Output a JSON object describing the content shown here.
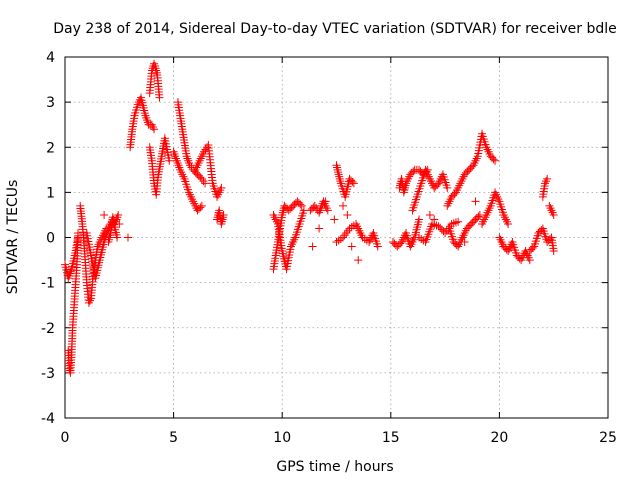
{
  "chart_data": {
    "type": "scatter",
    "title": "Day 238 of 2014, Sidereal Day-to-day VTEC variation (SDTVAR) for receiver bdle",
    "xlabel": "GPS time / hours",
    "ylabel": "SDTVAR / TECUs",
    "xlim": [
      0,
      25
    ],
    "ylim": [
      -4,
      4
    ],
    "xticks": [
      0,
      5,
      10,
      15,
      20,
      25
    ],
    "yticks": [
      -4,
      -3,
      -2,
      -1,
      0,
      1,
      2,
      3,
      4
    ],
    "grid": true,
    "marker": "+",
    "color": "#ff0000",
    "series": [
      {
        "name": "SDTVAR",
        "segments": [
          {
            "x": [
              0.0,
              0.15,
              0.3,
              0.45,
              0.6
            ],
            "y": [
              -0.6,
              -0.9,
              -0.7,
              -0.4,
              0.0
            ]
          },
          {
            "x": [
              0.15,
              0.2,
              0.25,
              0.3,
              0.35,
              0.45,
              0.55,
              0.6
            ],
            "y": [
              -2.5,
              -2.9,
              -3.0,
              -2.6,
              -2.0,
              -1.3,
              -0.6,
              0.1
            ]
          },
          {
            "x": [
              0.7,
              0.8,
              0.9,
              1.0,
              1.1,
              1.2,
              1.3,
              1.5,
              1.7,
              1.9
            ],
            "y": [
              0.7,
              0.3,
              -0.3,
              -1.0,
              -1.45,
              -1.35,
              -0.8,
              -0.2,
              0.0,
              0.2
            ]
          },
          {
            "x": [
              1.0,
              1.2,
              1.4,
              1.6,
              1.8,
              2.0,
              2.2,
              2.4
            ],
            "y": [
              0.1,
              -0.4,
              -0.9,
              -0.5,
              -0.1,
              0.2,
              0.4,
              0.0
            ]
          },
          {
            "x": [
              2.0,
              2.1,
              2.2,
              2.3,
              2.45
            ],
            "y": [
              -0.1,
              0.1,
              0.45,
              0.3,
              0.5
            ]
          },
          {
            "x": [
              3.0,
              3.1,
              3.2,
              3.35,
              3.5,
              3.7,
              3.85,
              4.0,
              4.1
            ],
            "y": [
              2.0,
              2.4,
              2.7,
              2.95,
              3.1,
              2.7,
              2.5,
              2.5,
              2.4
            ]
          },
          {
            "x": [
              3.9,
              4.0,
              4.1,
              4.15,
              4.25,
              4.35
            ],
            "y": [
              3.2,
              3.7,
              3.85,
              3.8,
              3.6,
              3.1
            ]
          },
          {
            "x": [
              3.9,
              4.0,
              4.1,
              4.2,
              4.3,
              4.45,
              4.6,
              4.8
            ],
            "y": [
              2.0,
              1.7,
              1.2,
              0.95,
              1.4,
              1.8,
              2.2,
              1.7
            ]
          },
          {
            "x": [
              5.2,
              5.3,
              5.4,
              5.5,
              5.6,
              5.75,
              5.9,
              6.1,
              6.3,
              6.45
            ],
            "y": [
              3.0,
              2.7,
              2.4,
              2.1,
              1.8,
              1.6,
              1.5,
              1.4,
              1.3,
              1.2
            ]
          },
          {
            "x": [
              5.0,
              5.15,
              5.3,
              5.5,
              5.7,
              5.9,
              6.1,
              6.3
            ],
            "y": [
              1.9,
              1.7,
              1.5,
              1.3,
              1.0,
              0.8,
              0.6,
              0.7
            ]
          },
          {
            "x": [
              6.0,
              6.2,
              6.4,
              6.6,
              6.8,
              7.0,
              7.2
            ],
            "y": [
              1.5,
              1.7,
              1.9,
              2.05,
              1.2,
              0.9,
              1.1
            ]
          },
          {
            "x": [
              7.0,
              7.1,
              7.2,
              7.3
            ],
            "y": [
              0.4,
              0.6,
              0.3,
              0.5
            ]
          },
          {
            "x": [
              9.6,
              9.7,
              9.8,
              9.9,
              10.0,
              10.1,
              10.3,
              10.5,
              10.7,
              10.9
            ],
            "y": [
              -0.7,
              -0.4,
              -0.1,
              0.2,
              0.5,
              0.7,
              0.6,
              0.7,
              0.8,
              0.7
            ]
          },
          {
            "x": [
              9.6,
              9.8,
              10.0,
              10.2,
              10.4,
              10.6,
              10.8,
              11.0
            ],
            "y": [
              0.5,
              0.3,
              -0.3,
              -0.7,
              -0.2,
              0.0,
              0.3,
              0.6
            ]
          },
          {
            "x": [
              11.3,
              11.5,
              11.7,
              11.9,
              12.1
            ],
            "y": [
              0.6,
              0.7,
              0.55,
              0.8,
              0.6
            ]
          },
          {
            "x": [
              12.5,
              12.6,
              12.7,
              12.9,
              13.1,
              13.3
            ],
            "y": [
              1.6,
              1.4,
              1.2,
              0.9,
              1.3,
              1.2
            ]
          },
          {
            "x": [
              12.5,
              12.8,
              13.1,
              13.4,
              13.7,
              14.0,
              14.2,
              14.4
            ],
            "y": [
              -0.1,
              0.0,
              0.2,
              0.3,
              0.0,
              -0.1,
              0.1,
              -0.2
            ]
          },
          {
            "x": [
              15.1,
              15.3,
              15.5,
              15.7,
              15.9,
              16.1,
              16.3
            ],
            "y": [
              -0.1,
              -0.2,
              -0.1,
              0.1,
              -0.2,
              0.0,
              0.4
            ]
          },
          {
            "x": [
              15.4,
              15.5,
              15.6,
              15.7,
              15.9,
              16.1,
              16.3,
              16.5,
              16.7
            ],
            "y": [
              1.1,
              1.3,
              1.0,
              1.2,
              1.4,
              1.5,
              1.5,
              1.4,
              1.5
            ]
          },
          {
            "x": [
              16.0,
              16.2,
              16.4,
              16.6,
              16.8,
              17.0,
              17.2,
              17.4,
              17.6
            ],
            "y": [
              0.6,
              0.9,
              1.2,
              1.5,
              1.3,
              1.1,
              1.2,
              1.4,
              1.1
            ]
          },
          {
            "x": [
              16.3,
              16.6,
              16.9,
              17.2,
              17.5,
              17.8,
              18.1
            ],
            "y": [
              0.0,
              -0.1,
              0.3,
              0.25,
              0.1,
              0.3,
              0.35
            ]
          },
          {
            "x": [
              17.6,
              17.8,
              18.0,
              18.2,
              18.4,
              18.6,
              18.8,
              19.0,
              19.2,
              19.4,
              19.6,
              19.8
            ],
            "y": [
              0.7,
              0.9,
              1.0,
              1.2,
              1.4,
              1.5,
              1.6,
              1.8,
              2.3,
              2.0,
              1.8,
              1.7
            ]
          },
          {
            "x": [
              17.7,
              17.9,
              18.1,
              18.3,
              18.5,
              18.7,
              18.9,
              19.1
            ],
            "y": [
              0.2,
              -0.1,
              -0.2,
              0.0,
              0.2,
              0.3,
              0.4,
              0.5
            ]
          },
          {
            "x": [
              19.2,
              19.4,
              19.6,
              19.8,
              20.0,
              20.2,
              20.4
            ],
            "y": [
              0.3,
              0.5,
              0.7,
              1.0,
              0.8,
              0.5,
              0.3
            ]
          },
          {
            "x": [
              20.0,
              20.2,
              20.4,
              20.6,
              20.8,
              21.0,
              21.2,
              21.4
            ],
            "y": [
              0.0,
              -0.2,
              -0.3,
              -0.1,
              -0.4,
              -0.5,
              -0.3,
              -0.5
            ]
          },
          {
            "x": [
              21.4,
              21.6,
              21.8,
              22.0,
              22.2,
              22.4,
              22.5
            ],
            "y": [
              -0.3,
              -0.2,
              0.1,
              0.2,
              -0.1,
              0.0,
              -0.3
            ]
          },
          {
            "x": [
              22.0,
              22.1,
              22.2
            ],
            "y": [
              0.9,
              1.2,
              1.3
            ]
          },
          {
            "x": [
              22.3,
              22.4,
              22.5
            ],
            "y": [
              0.7,
              0.6,
              0.5
            ]
          }
        ],
        "isolated_x": [
          2.5,
          1.8,
          2.9,
          10.5,
          10.8,
          11.4,
          11.7,
          12.0,
          12.4,
          12.8,
          13.0,
          13.5,
          13.2,
          16.8,
          17.0,
          18.4,
          18.9
        ],
        "isolated_y": [
          0.3,
          0.5,
          0.0,
          -0.1,
          0.3,
          -0.2,
          0.2,
          0.8,
          0.4,
          0.7,
          0.5,
          -0.5,
          -0.2,
          0.5,
          0.4,
          -0.1,
          0.8
        ]
      }
    ]
  }
}
